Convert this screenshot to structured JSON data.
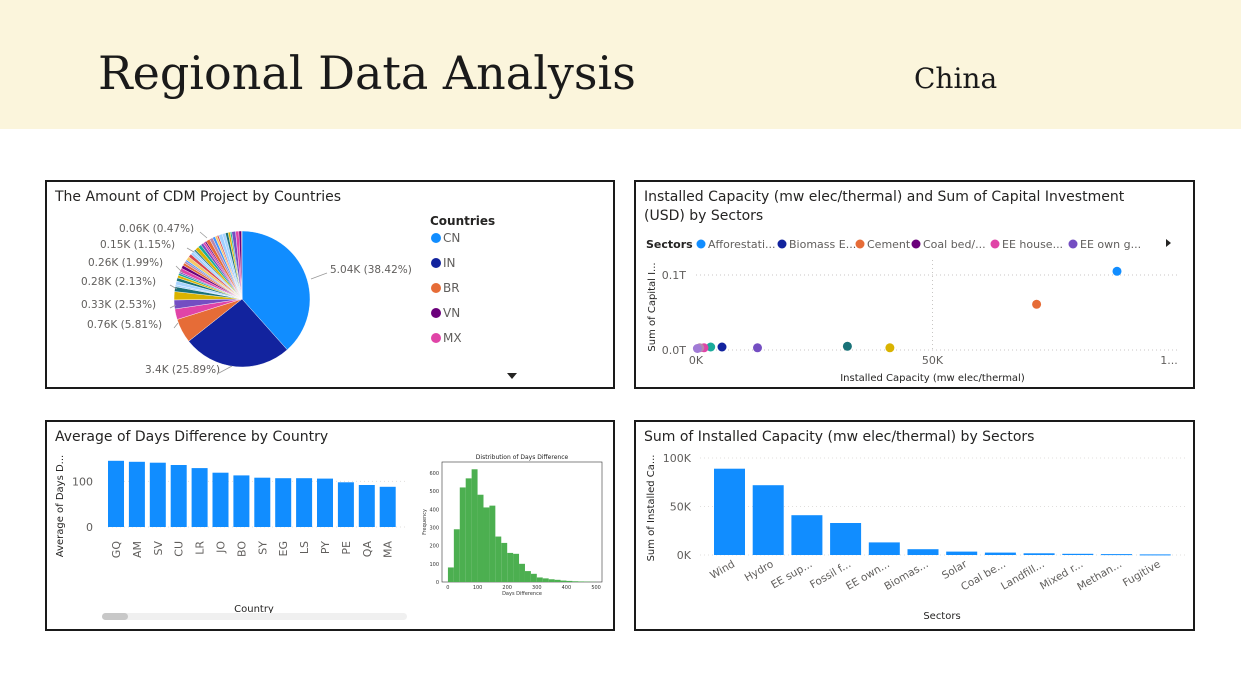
{
  "header": {
    "title": "Regional Data Analysis",
    "country": "China"
  },
  "colors": {
    "accent": "#118dff",
    "banner": "#fbf5dc",
    "histogram": "#4caf50"
  },
  "panel_pie": {
    "title": "The Amount of CDM Project by Countries",
    "legend_title": "Countries",
    "legend_more_icon": "chevron-down-icon",
    "legend": [
      {
        "label": "CN",
        "color": "#118dff"
      },
      {
        "label": "IN",
        "color": "#12239e"
      },
      {
        "label": "BR",
        "color": "#e66c37"
      },
      {
        "label": "VN",
        "color": "#6b007b"
      },
      {
        "label": "MX",
        "color": "#e044a7"
      }
    ],
    "slice_labels": [
      "5.04K (38.42%)",
      "3.4K (25.89%)",
      "0.76K (5.81%)",
      "0.33K (2.53%)",
      "0.28K (2.13%)",
      "0.26K (1.99%)",
      "0.15K (1.15%)",
      "0.06K (0.47%)"
    ]
  },
  "panel_scatter": {
    "title_line1": "Installed Capacity (mw elec/thermal) and Sum of Capital Investment",
    "title_line2": "(USD) by Sectors",
    "legend_title": "Sectors",
    "legend_more_icon": "chevron-right-icon",
    "legend": [
      {
        "label": "Afforestati...",
        "color": "#118dff"
      },
      {
        "label": "Biomass E...",
        "color": "#12239e"
      },
      {
        "label": "Cement",
        "color": "#e66c37"
      },
      {
        "label": "Coal bed/...",
        "color": "#6b007b"
      },
      {
        "label": "EE house...",
        "color": "#e044a7"
      },
      {
        "label": "EE own g...",
        "color": "#744ec2"
      }
    ],
    "xlabel": "Installed Capacity (mw elec/thermal)",
    "ylabel": "Sum of Capital I...",
    "xticks": [
      "0K",
      "50K",
      "1..."
    ],
    "yticks": [
      "0.0T",
      "0.1T"
    ]
  },
  "panel_bar": {
    "title": "Average of Days Difference by Country",
    "xlabel": "Country",
    "ylabel": "Average of Days D...",
    "yticks": [
      "0",
      "100"
    ],
    "hist_title": "Distribution of Days Difference",
    "hist_xlabel": "Days Difference",
    "hist_ylabel": "Frequency",
    "hist_xticks": [
      "0",
      "100",
      "200",
      "300",
      "400",
      "500"
    ],
    "hist_yticks": [
      "0",
      "100",
      "200",
      "300",
      "400",
      "500",
      "600"
    ]
  },
  "panel_column": {
    "title": "Sum of Installed Capacity (mw elec/thermal) by Sectors",
    "xlabel": "Sectors",
    "ylabel": "Sum of Installed Ca...",
    "yticks": [
      "0K",
      "50K",
      "100K"
    ]
  },
  "chart_data": [
    {
      "type": "pie",
      "title": "The Amount of CDM Project by Countries",
      "legend_title": "Countries",
      "categories": [
        "CN",
        "IN",
        "BR",
        "",
        "",
        "",
        "",
        ""
      ],
      "values": [
        5040,
        3400,
        760,
        330,
        280,
        260,
        150,
        60
      ],
      "percent": [
        38.42,
        25.89,
        5.81,
        2.53,
        2.13,
        1.99,
        1.15,
        0.47
      ],
      "colors": [
        "#118dff",
        "#12239e",
        "#e66c37",
        "#e044a7",
        "#744ec2",
        "#d9b300",
        "#197278",
        "#a8d3ff"
      ]
    },
    {
      "type": "scatter",
      "title": "Installed Capacity (mw elec/thermal) and Sum of Capital Investment (USD) by Sectors",
      "xlabel": "Installed Capacity (mw elec/thermal)",
      "ylabel": "Sum of Capital I...",
      "xlim": [
        0,
        100000
      ],
      "ylim": [
        0,
        0.12
      ],
      "points": [
        {
          "x": 89000,
          "y": 0.105,
          "color": "#118dff"
        },
        {
          "x": 72000,
          "y": 0.061,
          "color": "#e66c37"
        },
        {
          "x": 32000,
          "y": 0.005,
          "color": "#197278"
        },
        {
          "x": 41000,
          "y": 0.003,
          "color": "#d9b300"
        },
        {
          "x": 13000,
          "y": 0.003,
          "color": "#744ec2"
        },
        {
          "x": 5500,
          "y": 0.004,
          "color": "#12239e"
        },
        {
          "x": 3100,
          "y": 0.004,
          "color": "#1aab9b"
        },
        {
          "x": 1700,
          "y": 0.003,
          "color": "#e044a7"
        },
        {
          "x": 800,
          "y": 0.003,
          "color": "#b887ad"
        },
        {
          "x": 300,
          "y": 0.002,
          "color": "#a17bd6"
        }
      ]
    },
    {
      "type": "bar",
      "title": "Average of Days Difference by Country",
      "xlabel": "Country",
      "ylabel": "Average of Days D...",
      "ylim": [
        0,
        160
      ],
      "categories": [
        "GQ",
        "AM",
        "SV",
        "CU",
        "LR",
        "JO",
        "BO",
        "SY",
        "EG",
        "LS",
        "PY",
        "PE",
        "QA",
        "MA"
      ],
      "values": [
        145,
        143,
        141,
        136,
        129,
        119,
        113,
        108,
        107,
        107,
        106,
        98,
        92,
        88
      ],
      "color": "#118dff"
    },
    {
      "type": "bar",
      "title": "Distribution of Days Difference",
      "xlabel": "Days Difference",
      "ylabel": "Frequency",
      "xlim": [
        -20,
        520
      ],
      "ylim": [
        0,
        660
      ],
      "bin_edges": [
        0,
        20,
        40,
        60,
        80,
        100,
        120,
        140,
        160,
        180,
        200,
        220,
        240,
        260,
        280,
        300,
        320,
        340,
        360,
        380,
        400,
        420,
        440,
        460,
        480,
        500
      ],
      "values": [
        80,
        290,
        520,
        570,
        620,
        480,
        410,
        420,
        250,
        215,
        160,
        155,
        100,
        60,
        45,
        25,
        20,
        15,
        12,
        8,
        6,
        4,
        3,
        2,
        1
      ],
      "color": "#4caf50"
    },
    {
      "type": "bar",
      "title": "Sum of Installed Capacity (mw elec/thermal) by Sectors",
      "xlabel": "Sectors",
      "ylabel": "Sum of Installed Ca...",
      "ylim": [
        0,
        100000
      ],
      "categories": [
        "Wind",
        "Hydro",
        "EE sup...",
        "Fossil f...",
        "EE own...",
        "Biomas...",
        "Solar",
        "Coal be...",
        "Landfill...",
        "Mixed r...",
        "Methan...",
        "Fugitive"
      ],
      "values": [
        89000,
        72000,
        41000,
        33000,
        13000,
        6000,
        3500,
        2500,
        1800,
        1200,
        900,
        600
      ],
      "color": "#118dff"
    }
  ]
}
